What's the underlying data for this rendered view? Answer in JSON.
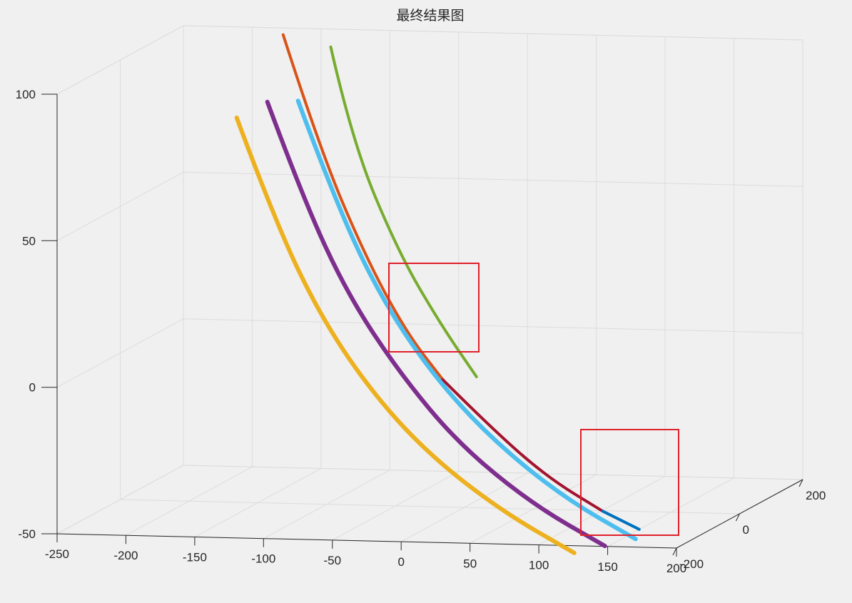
{
  "chart_data": {
    "type": "line",
    "title": "最终结果图",
    "xlabel": "",
    "ylabel": "",
    "zlabel": "",
    "xlim": [
      -250,
      200
    ],
    "ylim": [
      -200,
      200
    ],
    "zlim": [
      -50,
      100
    ],
    "x_ticks": [
      "-250",
      "-200",
      "-150",
      "-100",
      "-50",
      "0",
      "50",
      "100",
      "150",
      "200"
    ],
    "y_ticks": [
      "-200",
      "0",
      "200"
    ],
    "z_ticks": [
      "-50",
      "0",
      "50",
      "100"
    ],
    "grid": true,
    "series": [
      {
        "color": "#77ac30",
        "points": [
          [
            -120,
            100,
            100
          ],
          [
            -95,
            60,
            70
          ],
          [
            -55,
            30,
            35
          ],
          [
            -20,
            10,
            12
          ],
          [
            10,
            -5,
            -5
          ]
        ]
      },
      {
        "color": "#d95319",
        "points": [
          [
            -150,
            80,
            105
          ],
          [
            -115,
            40,
            70
          ],
          [
            -75,
            10,
            35
          ],
          [
            -40,
            -10,
            10
          ],
          [
            -10,
            -25,
            -5
          ]
        ]
      },
      {
        "color": "#a2142f",
        "points": [
          [
            -10,
            -25,
            -5
          ],
          [
            30,
            -45,
            -20
          ],
          [
            75,
            -65,
            -35
          ],
          [
            120,
            -85,
            -45
          ]
        ]
      },
      {
        "color": "#0072bd",
        "points": [
          [
            120,
            -85,
            -45
          ],
          [
            150,
            -100,
            -50
          ]
        ]
      },
      {
        "color": "#4dbeee",
        "points": [
          [
            -130,
            40,
            85
          ],
          [
            -95,
            0,
            55
          ],
          [
            -55,
            -35,
            25
          ],
          [
            -10,
            -65,
            0
          ],
          [
            40,
            -95,
            -20
          ],
          [
            100,
            -125,
            -38
          ],
          [
            160,
            -155,
            -50
          ]
        ]
      },
      {
        "color": "#7e2f8e",
        "points": [
          [
            -150,
            30,
            85
          ],
          [
            -115,
            -10,
            55
          ],
          [
            -75,
            -45,
            25
          ],
          [
            -30,
            -75,
            0
          ],
          [
            20,
            -105,
            -22
          ],
          [
            80,
            -135,
            -40
          ],
          [
            140,
            -165,
            -52
          ]
        ]
      },
      {
        "color": "#edb120",
        "points": [
          [
            -170,
            20,
            80
          ],
          [
            -135,
            -20,
            50
          ],
          [
            -95,
            -55,
            20
          ],
          [
            -50,
            -85,
            -5
          ],
          [
            0,
            -115,
            -25
          ],
          [
            60,
            -145,
            -42
          ],
          [
            120,
            -175,
            -54
          ]
        ]
      }
    ]
  },
  "highlight_boxes": [
    {
      "color": "#e0202a"
    },
    {
      "color": "#e0202a"
    }
  ]
}
